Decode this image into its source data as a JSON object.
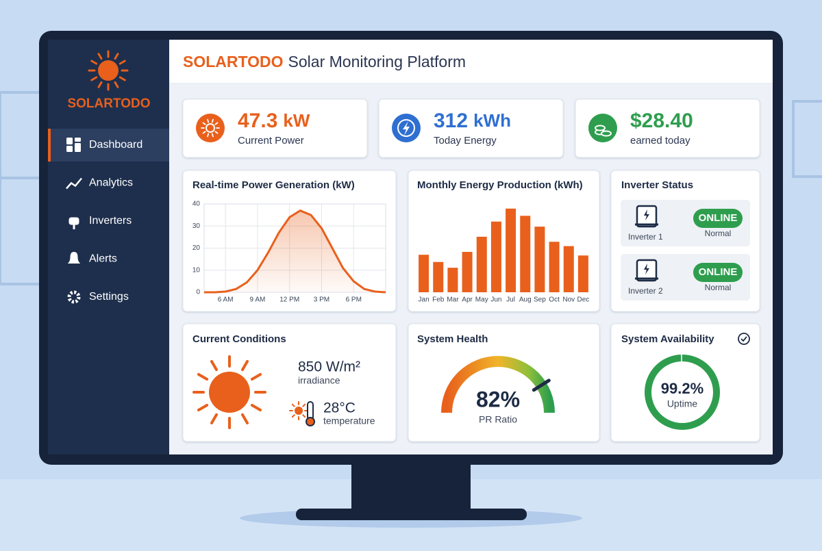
{
  "header": {
    "brand": "SOLARTODO",
    "title": "Solar Monitoring Platform"
  },
  "sidebar": {
    "brand": "SOLARTODO",
    "nav": [
      "Dashboard",
      "Analytics",
      "Inverters",
      "Alerts",
      "Settings"
    ]
  },
  "kpis": [
    {
      "value": 47.3,
      "unit": "kW",
      "label": "Current Power",
      "color": "#e8601c"
    },
    {
      "value": 312,
      "unit": "kWh",
      "label": "Today Energy",
      "color": "#2f6fd1"
    },
    {
      "value": "$28.40",
      "label": "earned today",
      "color": "#2e9e4e"
    }
  ],
  "chart_data": [
    {
      "type": "line",
      "title": "Real-time Power Generation (kW)",
      "color": "#e8601c",
      "x": [
        4,
        5,
        6,
        7,
        8,
        9,
        10,
        11,
        12,
        13,
        14,
        15,
        16,
        17,
        18,
        19,
        20,
        21
      ],
      "values": [
        0,
        0,
        0.3,
        1.5,
        4.5,
        10,
        18,
        27,
        34,
        37,
        35,
        29,
        20,
        11,
        5,
        1.5,
        0.3,
        0
      ],
      "xlim": [
        4,
        21
      ],
      "xticks": [
        {
          "value": 6,
          "label": "6 AM"
        },
        {
          "value": 9,
          "label": "9 AM"
        },
        {
          "value": 12,
          "label": "12 PM"
        },
        {
          "value": 15,
          "label": "3 PM"
        },
        {
          "value": 18,
          "label": "6 PM"
        }
      ],
      "ylim": [
        0,
        40
      ],
      "yticks": [
        0,
        10,
        20,
        30,
        40
      ],
      "grid": true
    },
    {
      "type": "bar",
      "title": "Monthly Energy Production (kWh)",
      "color": "#e8601c",
      "categories": [
        "Jan",
        "Feb",
        "Mar",
        "Apr",
        "May",
        "Jun",
        "Jul",
        "Aug",
        "Sep",
        "Oct",
        "Nov",
        "Dec"
      ],
      "values": [
        52,
        42,
        34,
        56,
        77,
        98,
        116,
        106,
        91,
        70,
        64,
        51
      ],
      "ylim": [
        0,
        130
      ]
    }
  ],
  "inverters": {
    "title": "Inverter Status",
    "items": [
      {
        "name": "Inverter 1",
        "status": "ONLINE",
        "state": "Normal"
      },
      {
        "name": "Inverter 2",
        "status": "ONLINE",
        "state": "Normal"
      }
    ]
  },
  "conditions": {
    "title": "Current Conditions",
    "irradiance": "850 W/m²",
    "irradiance_label": "irradiance",
    "temperature": "28°C",
    "temperature_label": "temperature"
  },
  "health": {
    "title": "System Health",
    "value": 82,
    "value_label": "82%",
    "caption": "PR Ratio",
    "range": [
      0,
      100
    ]
  },
  "availability": {
    "title": "System Availability",
    "value": 99.2,
    "value_label": "99.2%",
    "caption": "Uptime",
    "range": [
      0,
      100
    ]
  }
}
